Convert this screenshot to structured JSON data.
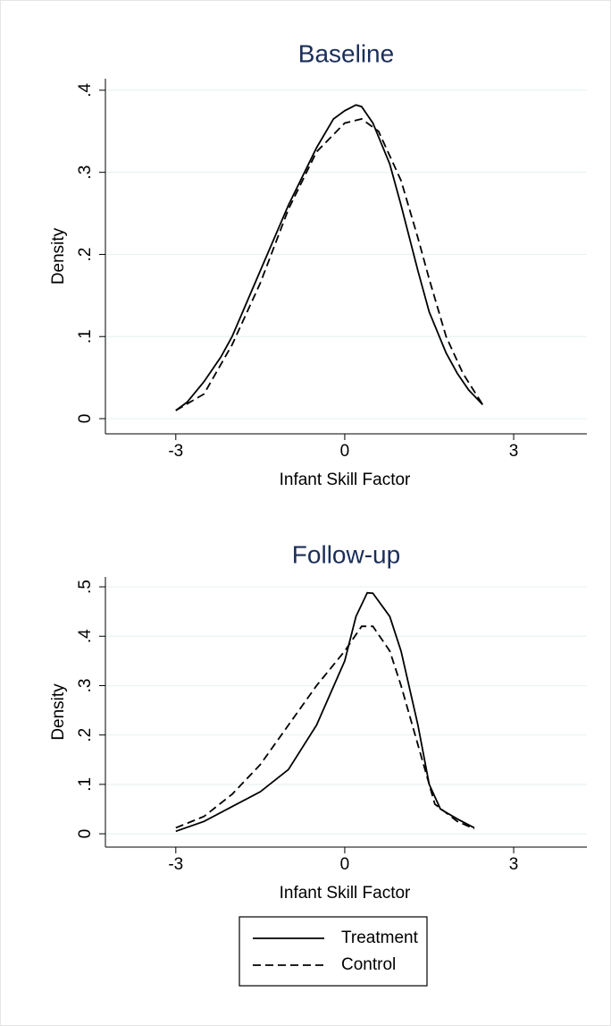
{
  "chart_data": [
    {
      "type": "line",
      "title": "Baseline",
      "y_label": "Density",
      "x_label": "Infant Skill Factor",
      "xlim": [
        -4.25,
        4.3
      ],
      "ylim": [
        -0.0185,
        0.414
      ],
      "xticks": [
        -3,
        0,
        3
      ],
      "yticks": [
        0,
        {
          "value": 0.1,
          "label": ".1"
        },
        {
          "value": 0.2,
          "label": ".2"
        },
        {
          "value": 0.3,
          "label": ".3"
        },
        {
          "value": 0.4,
          "label": ".4"
        }
      ],
      "grid": true,
      "series": [
        {
          "color": "#000000",
          "dashed": false,
          "x": [
            -3,
            -2.8,
            -2.5,
            -2.2,
            -2,
            -1.5,
            -1,
            -0.5,
            -0.2,
            0,
            0.2,
            0.3,
            0.5,
            0.8,
            1,
            1.3,
            1.5,
            1.8,
            2,
            2.2,
            2.45
          ],
          "values": [
            0.01,
            0.02,
            0.045,
            0.075,
            0.1,
            0.18,
            0.26,
            0.33,
            0.365,
            0.375,
            0.382,
            0.38,
            0.36,
            0.31,
            0.26,
            0.18,
            0.13,
            0.08,
            0.055,
            0.035,
            0.017
          ]
        },
        {
          "color": "#000000",
          "dashed": true,
          "x": [
            -3,
            -2.5,
            -2,
            -1.5,
            -1,
            -0.5,
            0,
            0.3,
            0.6,
            1,
            1.3,
            1.5,
            1.8,
            2.1,
            2.45
          ],
          "values": [
            0.01,
            0.03,
            0.09,
            0.165,
            0.255,
            0.325,
            0.36,
            0.365,
            0.35,
            0.29,
            0.22,
            0.17,
            0.1,
            0.055,
            0.017
          ]
        }
      ]
    },
    {
      "type": "line",
      "title": "Follow-up",
      "y_label": "Density",
      "x_label": "Infant Skill Factor",
      "xlim": [
        -4.25,
        4.3
      ],
      "ylim": [
        -0.027,
        0.52
      ],
      "xticks": [
        -3,
        0,
        3
      ],
      "yticks": [
        0,
        {
          "value": 0.1,
          "label": ".1"
        },
        {
          "value": 0.2,
          "label": ".2"
        },
        {
          "value": 0.3,
          "label": ".3"
        },
        {
          "value": 0.4,
          "label": ".4"
        },
        {
          "value": 0.5,
          "label": ".5"
        }
      ],
      "grid": true,
      "series": [
        {
          "name": "Treatment",
          "color": "#000000",
          "dashed": false,
          "x": [
            -3,
            -2.5,
            -2,
            -1.5,
            -1,
            -0.5,
            0,
            0.2,
            0.4,
            0.5,
            0.8,
            1,
            1.3,
            1.5,
            1.7,
            2,
            2.3
          ],
          "values": [
            0.005,
            0.025,
            0.055,
            0.085,
            0.13,
            0.22,
            0.35,
            0.44,
            0.488,
            0.487,
            0.44,
            0.37,
            0.22,
            0.1,
            0.05,
            0.03,
            0.012
          ]
        },
        {
          "name": "Control",
          "color": "#000000",
          "dashed": true,
          "x": [
            -3,
            -2.5,
            -2,
            -1.5,
            -1,
            -0.5,
            0,
            0.3,
            0.5,
            0.8,
            1,
            1.3,
            1.6,
            2,
            2.3
          ],
          "values": [
            0.012,
            0.035,
            0.08,
            0.14,
            0.22,
            0.3,
            0.37,
            0.42,
            0.42,
            0.37,
            0.3,
            0.18,
            0.06,
            0.025,
            0.01
          ]
        }
      ]
    }
  ]
}
